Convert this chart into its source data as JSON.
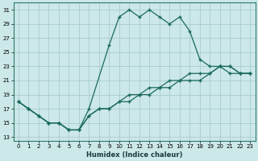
{
  "xlabel": "Humidex (Indice chaleur)",
  "bg_color": "#cce8e8",
  "grid_color": "#aacccc",
  "line_color": "#1a6b5a",
  "xlim": [
    -0.5,
    23.5
  ],
  "ylim": [
    12.5,
    32
  ],
  "yticks": [
    13,
    15,
    17,
    19,
    21,
    23,
    25,
    27,
    29,
    31
  ],
  "xticks": [
    0,
    1,
    2,
    3,
    4,
    5,
    6,
    7,
    8,
    9,
    10,
    11,
    12,
    13,
    14,
    15,
    16,
    17,
    18,
    19,
    20,
    21,
    22,
    23
  ],
  "line1_x": [
    0,
    1,
    2,
    3,
    4,
    5,
    6,
    7,
    9,
    10,
    11,
    12,
    13,
    14,
    15,
    16,
    17,
    18,
    19,
    20,
    21,
    22,
    23
  ],
  "line1_y": [
    18,
    17,
    16,
    15,
    15,
    14,
    14,
    17,
    26,
    30,
    31,
    30,
    31,
    30,
    29,
    30,
    28,
    24,
    23,
    23,
    23,
    22,
    22
  ],
  "line2_x": [
    0,
    1,
    2,
    3,
    4,
    5,
    6,
    7,
    8,
    9,
    10,
    11,
    12,
    13,
    14,
    15,
    16,
    17,
    18,
    19,
    20,
    21,
    22,
    23
  ],
  "line2_y": [
    18,
    17,
    16,
    15,
    15,
    14,
    14,
    16,
    17,
    17,
    18,
    18,
    19,
    19,
    20,
    20,
    21,
    22,
    22,
    22,
    23,
    23,
    22,
    22
  ],
  "line3_x": [
    0,
    1,
    2,
    3,
    4,
    5,
    6,
    7,
    8,
    9,
    10,
    11,
    12,
    13,
    14,
    15,
    16,
    17,
    18,
    19,
    20,
    21,
    22,
    23
  ],
  "line3_y": [
    18,
    17,
    16,
    15,
    15,
    14,
    14,
    16,
    17,
    17,
    18,
    19,
    19,
    20,
    20,
    21,
    21,
    21,
    21,
    22,
    23,
    22,
    22,
    22
  ]
}
